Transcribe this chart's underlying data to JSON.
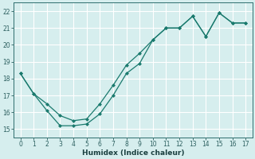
{
  "xlabel": "Humidex (Indice chaleur)",
  "bg_color": "#d6eeee",
  "grid_color": "#ffffff",
  "line_color": "#1a7a6e",
  "xlim": [
    -0.5,
    17.5
  ],
  "ylim": [
    14.5,
    22.5
  ],
  "xticks": [
    0,
    1,
    2,
    3,
    4,
    5,
    6,
    7,
    8,
    9,
    10,
    11,
    12,
    13,
    14,
    15,
    16,
    17
  ],
  "yticks": [
    15,
    16,
    17,
    18,
    19,
    20,
    21,
    22
  ],
  "series1_x": [
    0,
    1,
    2,
    3,
    4,
    5,
    6,
    7,
    8,
    9,
    10,
    11,
    12,
    13,
    14,
    15,
    16,
    17
  ],
  "series1_y": [
    18.3,
    17.1,
    16.1,
    15.2,
    15.2,
    15.3,
    15.9,
    17.0,
    18.3,
    18.9,
    20.3,
    21.0,
    21.0,
    21.7,
    20.5,
    21.9,
    21.3,
    21.3
  ],
  "series2_x": [
    0,
    1,
    2,
    3,
    4,
    5,
    6,
    7,
    8,
    9,
    10,
    11,
    12,
    13,
    14,
    15,
    16,
    17
  ],
  "series2_y": [
    18.3,
    17.1,
    16.5,
    15.8,
    15.5,
    15.6,
    16.5,
    17.6,
    18.8,
    19.5,
    20.3,
    21.0,
    21.0,
    21.7,
    20.5,
    21.9,
    21.3,
    21.3
  ],
  "marker_size": 2.5,
  "linewidth": 0.9,
  "tick_fontsize": 5.5,
  "xlabel_fontsize": 6.5
}
